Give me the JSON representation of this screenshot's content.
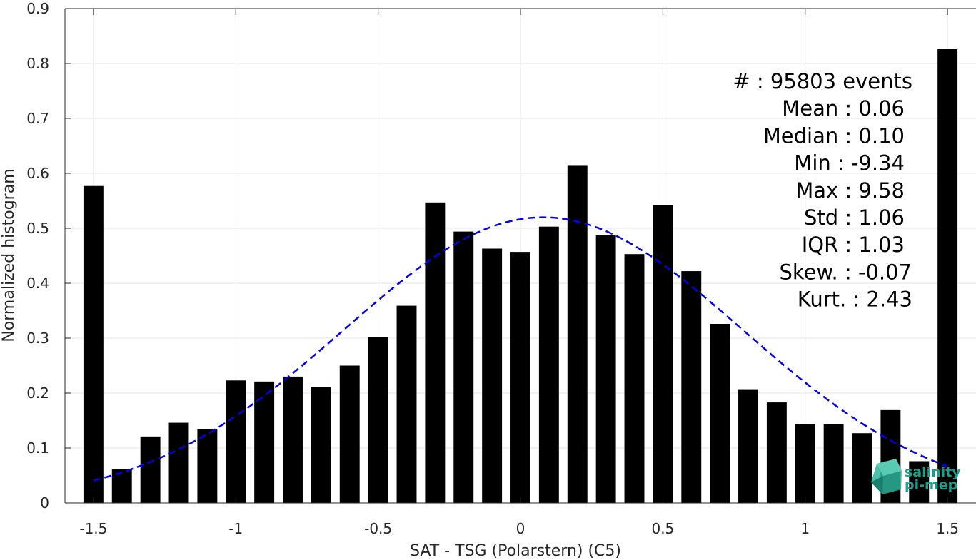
{
  "chart_data": {
    "type": "bar",
    "xlabel": "SAT - TSG (Polarstern) (C5)",
    "ylabel": "Normalized histogram",
    "xlim": [
      -1.6,
      1.6
    ],
    "ylim": [
      0,
      0.9
    ],
    "grid": true,
    "x_ticks": [
      -1.5,
      -1,
      -0.5,
      0,
      0.5,
      1,
      1.5
    ],
    "x_tick_labels": [
      "-1.5",
      "-1",
      "-0.5",
      "0",
      "0.5",
      "1",
      "1.5"
    ],
    "y_ticks": [
      0,
      0.1,
      0.2,
      0.3,
      0.4,
      0.5,
      0.6,
      0.7,
      0.8,
      0.9
    ],
    "y_tick_labels": [
      "0",
      "0.1",
      "0.2",
      "0.3",
      "0.4",
      "0.5",
      "0.6",
      "0.7",
      "0.8",
      "0.9"
    ],
    "bar_width": 0.07,
    "bar_color": "#000000",
    "x": [
      -1.5,
      -1.4,
      -1.3,
      -1.2,
      -1.1,
      -1.0,
      -0.9,
      -0.8,
      -0.7,
      -0.6,
      -0.5,
      -0.4,
      -0.3,
      -0.2,
      -0.1,
      0.0,
      0.1,
      0.2,
      0.3,
      0.4,
      0.5,
      0.6,
      0.7,
      0.8,
      0.9,
      1.0,
      1.1,
      1.2,
      1.3,
      1.4,
      1.5
    ],
    "values": [
      0.577,
      0.061,
      0.121,
      0.146,
      0.134,
      0.223,
      0.221,
      0.23,
      0.211,
      0.25,
      0.302,
      0.359,
      0.547,
      0.494,
      0.463,
      0.457,
      0.503,
      0.615,
      0.487,
      0.453,
      0.542,
      0.422,
      0.326,
      0.207,
      0.183,
      0.143,
      0.144,
      0.127,
      0.169,
      0.076,
      0.826
    ],
    "fit_curve": {
      "style": "dashed",
      "color": "#0000ee",
      "mean": 0.08,
      "sigma": 0.7,
      "peak": 0.52,
      "x_range": [
        -1.5,
        1.5
      ]
    },
    "stats": [
      "#  : 95803 events",
      "Mean : 0.06",
      "Median : 0.10",
      "Min : -9.34",
      "Max : 9.58",
      "Std : 1.06",
      "IQR : 1.03",
      "Skew. : -0.07",
      "Kurt. : 2.43"
    ]
  },
  "logo": {
    "line1": "salinity",
    "line2": "pi-mep",
    "color": "#1aa08a"
  }
}
